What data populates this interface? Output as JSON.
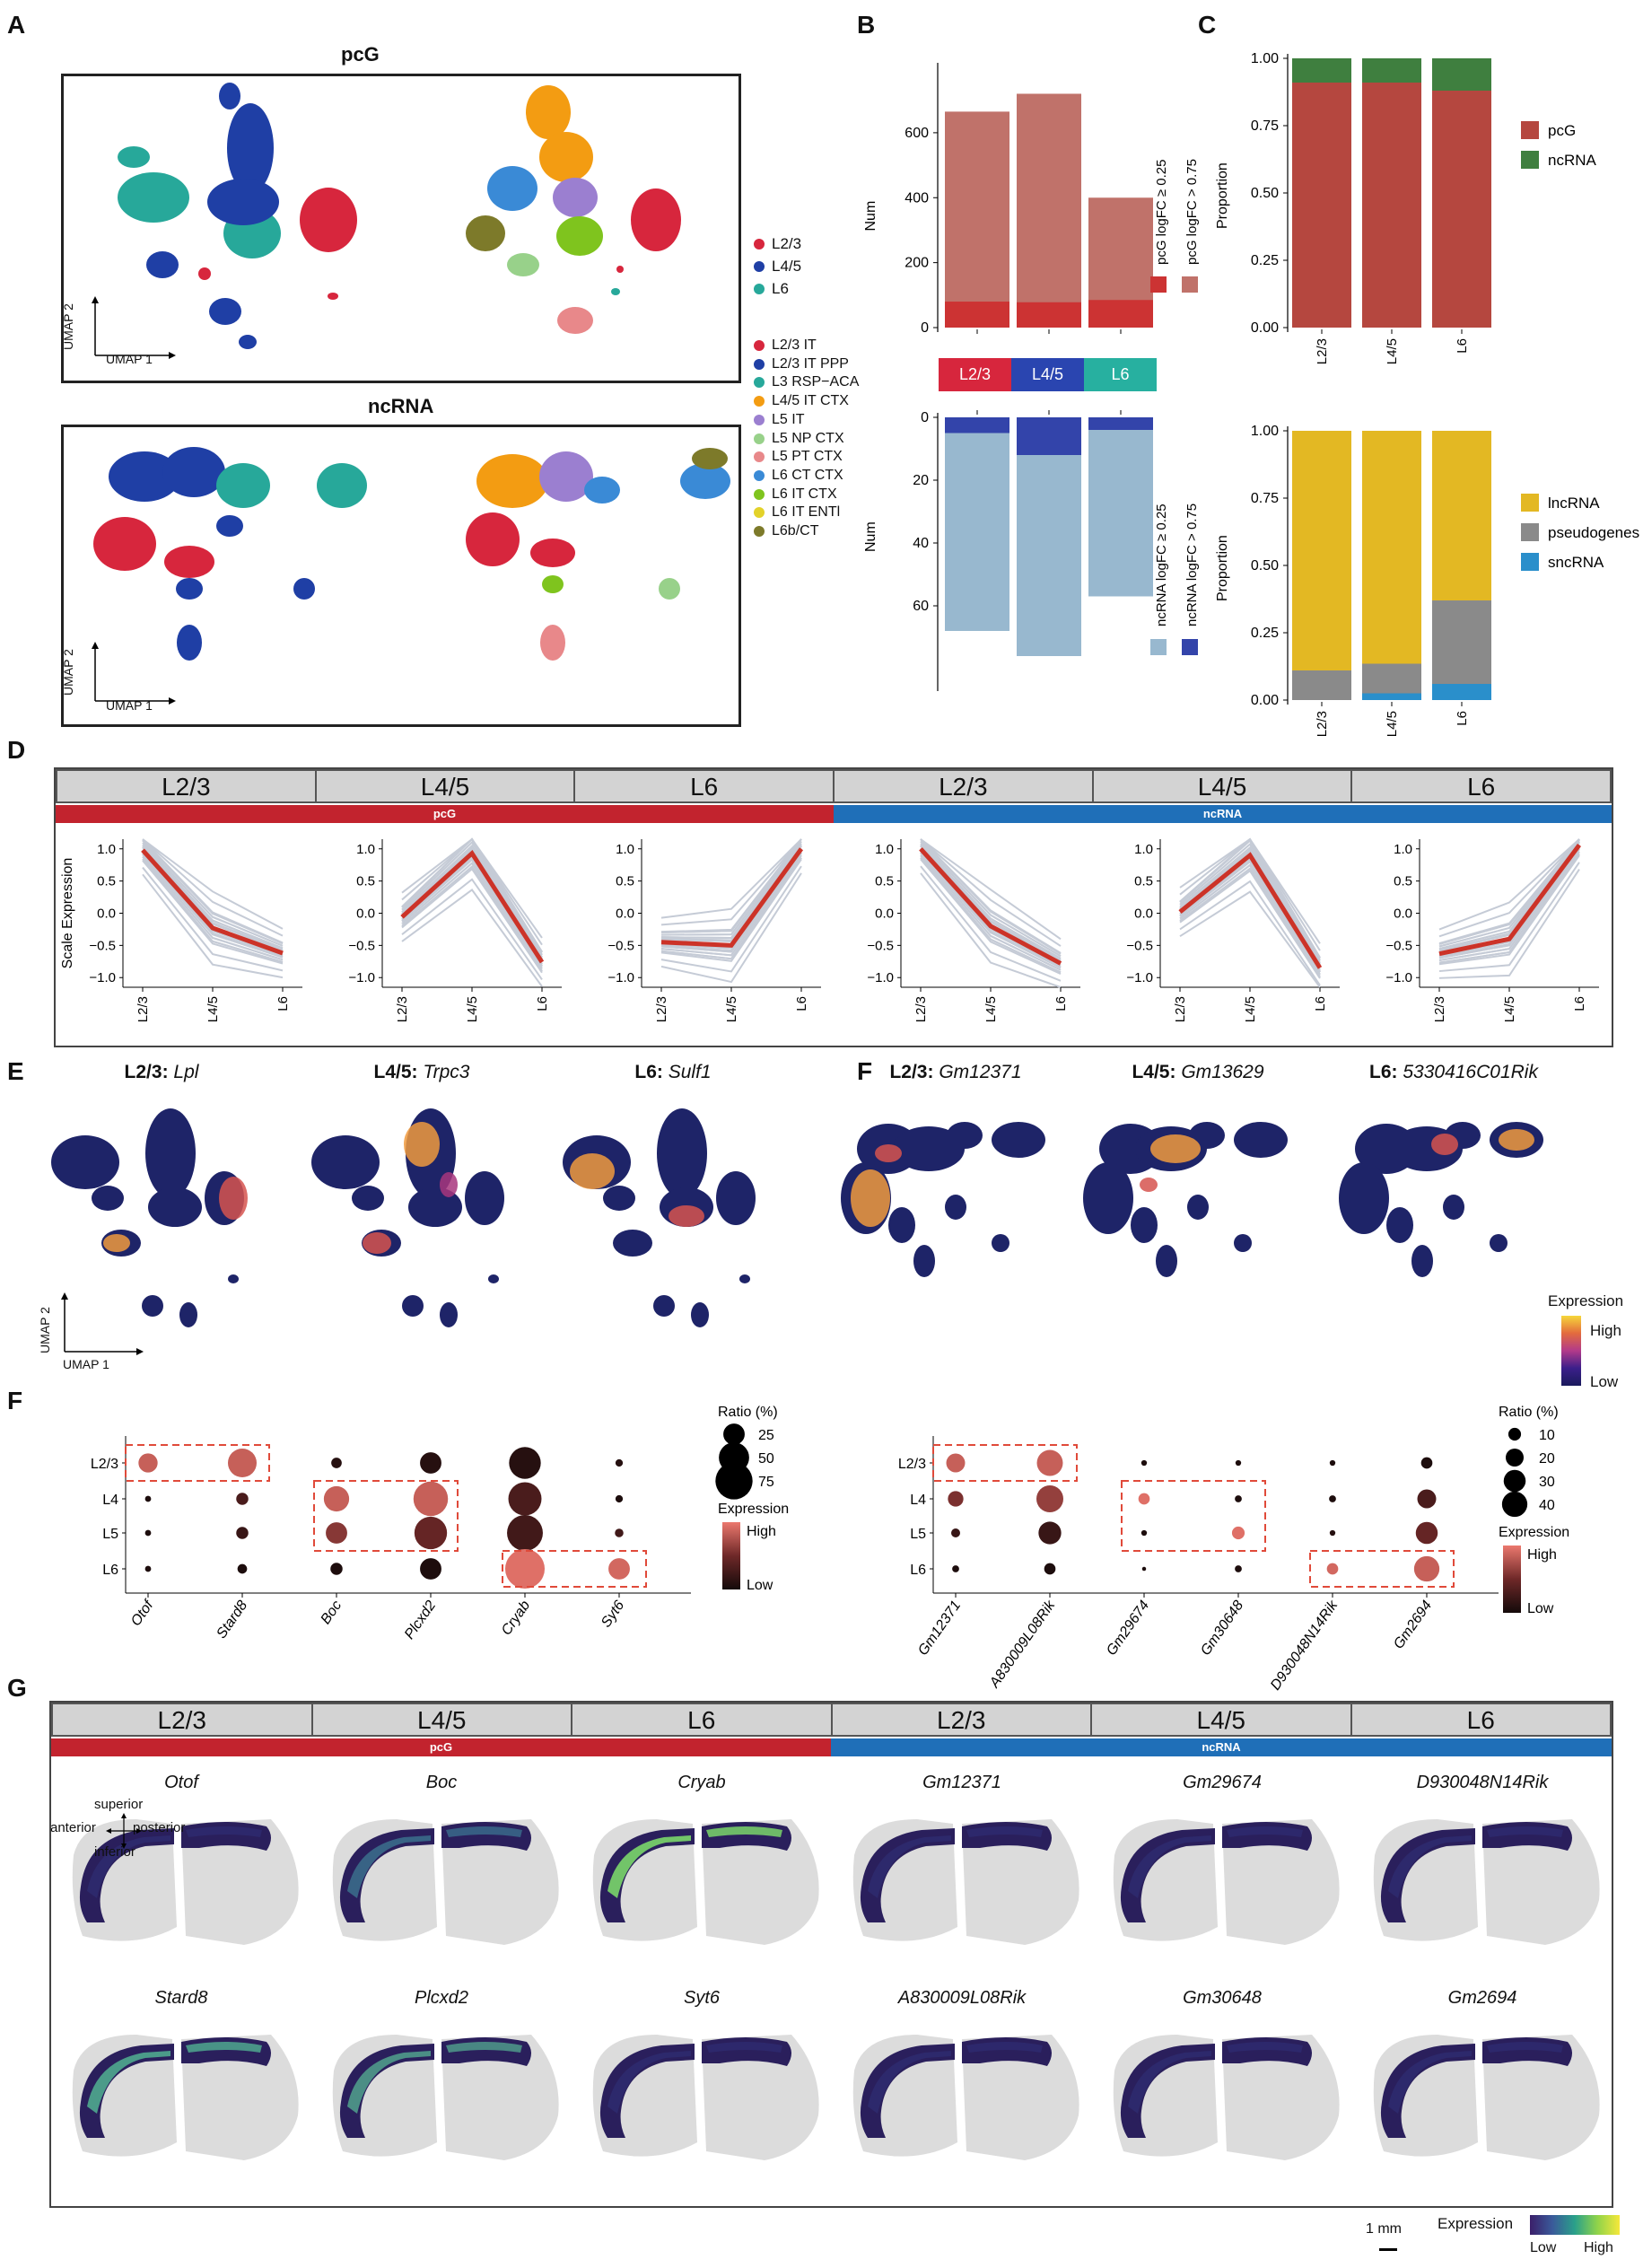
{
  "panel_letters": {
    "A": "A",
    "B": "B",
    "C": "C",
    "D": "D",
    "E": "E",
    "F1": "F",
    "F2": "F",
    "F3": "F",
    "G": "G"
  },
  "panelA": {
    "title_pcg": "pcG",
    "title_ncrna": "ncRNA",
    "umap_x": "UMAP 1",
    "umap_y": "UMAP 2",
    "legend_layers": [
      {
        "label": "L2/3",
        "color": "#d7263d"
      },
      {
        "label": "L4/5",
        "color": "#1f3fa5"
      },
      {
        "label": "L6",
        "color": "#27a89a"
      }
    ],
    "legend_subclasses": [
      {
        "label": "L2/3 IT",
        "color": "#d7263d"
      },
      {
        "label": "L2/3 IT PPP",
        "color": "#1f3fa5"
      },
      {
        "label": "L3 RSP−ACA",
        "color": "#27a89a"
      },
      {
        "label": "L4/5 IT CTX",
        "color": "#f39c12"
      },
      {
        "label": "L5 IT",
        "color": "#9b7fd0"
      },
      {
        "label": "L5 NP CTX",
        "color": "#98d18a"
      },
      {
        "label": "L5 PT CTX",
        "color": "#e8888a"
      },
      {
        "label": "L6 CT CTX",
        "color": "#3a8ad6"
      },
      {
        "label": "L6 IT CTX",
        "color": "#7fc41e"
      },
      {
        "label": "L6 IT ENTl",
        "color": "#e3d22a"
      },
      {
        "label": "L6b/CT",
        "color": "#7d7a2a"
      }
    ]
  },
  "panelB_top": {
    "chart_data": {
      "type": "bar",
      "categories": [
        "L2/3",
        "L4/5",
        "L6"
      ],
      "series": [
        {
          "name": "pcG logFC ≥ 0.25",
          "values": [
            665,
            720,
            400
          ],
          "color": "#c0726a"
        },
        {
          "name": "pcG logFC > 0.75",
          "values": [
            80,
            78,
            85
          ],
          "color": "#cc3333"
        }
      ],
      "ylabel": "Num",
      "yticks": [
        0,
        200,
        400,
        600
      ],
      "ylim": [
        0,
        760
      ]
    }
  },
  "panelB_bottom": {
    "chart_data": {
      "type": "bar",
      "categories": [
        "L2/3",
        "L4/5",
        "L6"
      ],
      "series": [
        {
          "name": "ncRNA logFC ≥ 0.25",
          "values": [
            68,
            76,
            57
          ],
          "color": "#98b8cf"
        },
        {
          "name": "ncRNA logFC > 0.75",
          "values": [
            5,
            12,
            4
          ],
          "color": "#3344aa"
        }
      ],
      "ylabel": "Num",
      "yticks": [
        0,
        20,
        40,
        60
      ],
      "ylim": [
        0,
        80
      ]
    },
    "layer_labels": [
      {
        "label": "L2/3",
        "color": "#d7263d"
      },
      {
        "label": "L4/5",
        "color": "#2a45b0"
      },
      {
        "label": "L6",
        "color": "#27b0a0"
      }
    ]
  },
  "panelC_top": {
    "chart_data": {
      "type": "bar",
      "categories": [
        "L2/3",
        "L4/5",
        "L6"
      ],
      "series": [
        {
          "name": "pcG",
          "values": [
            0.91,
            0.91,
            0.88
          ],
          "color": "#b5473f"
        },
        {
          "name": "ncRNA",
          "values": [
            0.09,
            0.09,
            0.12
          ],
          "color": "#3f7f3f"
        }
      ],
      "ylabel": "Proportion",
      "yticks": [
        "0.00",
        "0.25",
        "0.50",
        "0.75",
        "1.00"
      ],
      "ylim": [
        0,
        1
      ]
    }
  },
  "panelC_bottom": {
    "chart_data": {
      "type": "bar",
      "categories": [
        "L2/3",
        "L4/5",
        "L6"
      ],
      "series": [
        {
          "name": "sncRNA",
          "values": [
            0,
            0.025,
            0.06
          ],
          "color": "#2a8fcb"
        },
        {
          "name": "pseudogenes",
          "values": [
            0.11,
            0.11,
            0.31
          ],
          "color": "#8a8a8a"
        },
        {
          "name": "lncRNA",
          "values": [
            0.89,
            0.865,
            0.63
          ],
          "color": "#e3b823"
        }
      ],
      "legend_order": [
        "lncRNA",
        "pseudogenes",
        "sncRNA"
      ],
      "ylabel": "Proportion",
      "yticks": [
        "0.00",
        "0.25",
        "0.50",
        "0.75",
        "1.00"
      ],
      "ylim": [
        0,
        1
      ]
    }
  },
  "panelD": {
    "strip_labels": [
      "L2/3",
      "L4/5",
      "L6",
      "L2/3",
      "L4/5",
      "L6"
    ],
    "band_pcg": "pcG",
    "band_ncrna": "ncRNA",
    "ylabel": "Scale Expression",
    "yticks": [
      "1.0",
      "0.5",
      "0.0",
      "−0.5",
      "−1.0"
    ],
    "xticks": [
      "L2/3",
      "L4/5",
      "L6"
    ],
    "chart_data": [
      {
        "type": "line",
        "title": "pcG L2/3",
        "x": [
          "L2/3",
          "L4/5",
          "L6"
        ],
        "mean": [
          0.98,
          -0.23,
          -0.62
        ]
      },
      {
        "type": "line",
        "title": "pcG L4/5",
        "x": [
          "L2/3",
          "L4/5",
          "L6"
        ],
        "mean": [
          -0.06,
          0.93,
          -0.76
        ]
      },
      {
        "type": "line",
        "title": "pcG L6",
        "x": [
          "L2/3",
          "L4/5",
          "L6"
        ],
        "mean": [
          -0.45,
          -0.5,
          1.0
        ]
      },
      {
        "type": "line",
        "title": "ncRNA L2/3",
        "x": [
          "L2/3",
          "L4/5",
          "L6"
        ],
        "mean": [
          1.0,
          -0.2,
          -0.78
        ]
      },
      {
        "type": "line",
        "title": "ncRNA L4/5",
        "x": [
          "L2/3",
          "L4/5",
          "L6"
        ],
        "mean": [
          0.02,
          0.9,
          -0.85
        ]
      },
      {
        "type": "line",
        "title": "ncRNA L6",
        "x": [
          "L2/3",
          "L4/5",
          "L6"
        ],
        "mean": [
          -0.63,
          -0.4,
          1.06
        ]
      }
    ]
  },
  "panelE": {
    "titles": [
      {
        "layer": "L2/3:",
        "gene": "Lpl"
      },
      {
        "layer": "L4/5:",
        "gene": "Trpc3"
      },
      {
        "layer": "L6:",
        "gene": "Sulf1"
      }
    ],
    "umap_x": "UMAP 1",
    "umap_y": "UMAP 2"
  },
  "panelF_umap": {
    "titles": [
      {
        "layer": "L2/3:",
        "gene": "Gm12371"
      },
      {
        "layer": "L4/5:",
        "gene": "Gm13629"
      },
      {
        "layer": "L6:",
        "gene": "5330416C01Rik"
      }
    ],
    "legend_title": "Expression",
    "legend_high": "High",
    "legend_low": "Low"
  },
  "dotplot_pcg": {
    "chart_data": {
      "type": "dot",
      "rows": [
        "L2/3",
        "L4",
        "L5",
        "L6"
      ],
      "cols": [
        "Otof",
        "Stard8",
        "Boc",
        "Plcxd2",
        "Cryab",
        "Syt6"
      ],
      "ratio": [
        [
          20,
          45,
          6,
          25,
          55,
          3
        ],
        [
          2,
          8,
          35,
          65,
          60,
          3
        ],
        [
          2,
          8,
          25,
          58,
          70,
          4
        ],
        [
          2,
          5,
          8,
          25,
          85,
          25
        ]
      ],
      "expression": [
        [
          0.85,
          0.85,
          0.1,
          0.1,
          0.1,
          0.1
        ],
        [
          0.05,
          0.3,
          0.85,
          0.85,
          0.3,
          0.05
        ],
        [
          0.05,
          0.2,
          0.6,
          0.45,
          0.25,
          0.25
        ],
        [
          0.05,
          0.05,
          0.05,
          0.05,
          0.95,
          0.9
        ]
      ]
    },
    "ratio_title": "Ratio (%)",
    "ratio_levels": [
      "25",
      "50",
      "75"
    ],
    "expr_title": "Expression",
    "expr_high": "High",
    "expr_low": "Low"
  },
  "dotplot_ncrna": {
    "chart_data": {
      "type": "dot",
      "rows": [
        "L2/3",
        "L4",
        "L5",
        "L6"
      ],
      "cols": [
        "Gm12371",
        "A830009L08Rik",
        "Gm29674",
        "Gm30648",
        "D930048N14Rik",
        "Gm2694"
      ],
      "ratio": [
        [
          22,
          42,
          2,
          2,
          2,
          8
        ],
        [
          15,
          45,
          8,
          3,
          3,
          22
        ],
        [
          5,
          32,
          2,
          10,
          2,
          30
        ],
        [
          3,
          8,
          1,
          3,
          8,
          40
        ]
      ],
      "expression": [
        [
          0.85,
          0.85,
          0.05,
          0.05,
          0.05,
          0.05
        ],
        [
          0.55,
          0.65,
          0.95,
          0.05,
          0.05,
          0.3
        ],
        [
          0.2,
          0.2,
          0.05,
          0.95,
          0.1,
          0.45
        ],
        [
          0.05,
          0.05,
          0.05,
          0.05,
          0.9,
          0.85
        ]
      ]
    },
    "ratio_title": "Ratio (%)",
    "ratio_levels": [
      "10",
      "20",
      "30",
      "40"
    ],
    "expr_title": "Expression",
    "expr_high": "High",
    "expr_low": "Low"
  },
  "panelG": {
    "strip_labels": [
      "L2/3",
      "L4/5",
      "L6",
      "L2/3",
      "L4/5",
      "L6"
    ],
    "band_pcg": "pcG",
    "band_ncrna": "ncRNA",
    "genes_top": [
      "Otof",
      "Boc",
      "Cryab",
      "Gm12371",
      "Gm29674",
      "D930048N14Rik"
    ],
    "genes_bottom": [
      "Stard8",
      "Plcxd2",
      "Syt6",
      "A830009L08Rik",
      "Gm30648",
      "Gm2694"
    ],
    "orientation": {
      "superior": "superior",
      "inferior": "inferior",
      "anterior": "anterior",
      "posterior": "posterior"
    },
    "scale_bar": "1 mm",
    "legend_title": "Expression",
    "legend_low": "Low",
    "legend_high": "High"
  }
}
